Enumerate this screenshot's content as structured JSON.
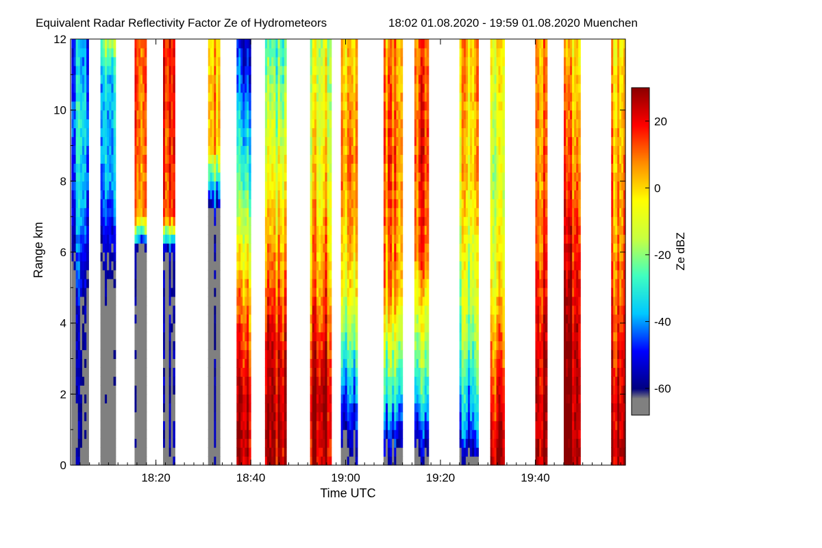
{
  "chart_data": {
    "type": "heatmap",
    "title": "Equivalent Radar Reflectivity Factor Ze of Hydrometeors",
    "subtitle": "18:02 01.08.2020 - 19:59 01.08.2020 Muenchen",
    "xlabel": "Time UTC",
    "ylabel": "Range km",
    "colorbar_label": "Ze dBZ",
    "x_range_minutes": [
      0,
      117
    ],
    "x_ticks": [
      {
        "label": "18:20",
        "minute": 18
      },
      {
        "label": "18:40",
        "minute": 38
      },
      {
        "label": "19:00",
        "minute": 58
      },
      {
        "label": "19:20",
        "minute": 78
      },
      {
        "label": "19:40",
        "minute": 98
      }
    ],
    "ylim": [
      0,
      12
    ],
    "y_ticks": [
      0,
      2,
      4,
      6,
      8,
      10,
      12
    ],
    "colorbar_range": [
      -68,
      30
    ],
    "colorbar_ticks": [
      20,
      0,
      -20,
      -40,
      -60
    ],
    "colormap": [
      "#000080",
      "#0000ff",
      "#00c8ff",
      "#40ffc0",
      "#c8ff40",
      "#ffff00",
      "#ff8c00",
      "#ff0000",
      "#8b0000"
    ],
    "nodata_color": "#808080",
    "segments": [
      {
        "t0": 0.2,
        "t1": 3.8,
        "profile": [
          [
            0,
            -62
          ],
          [
            4,
            -58
          ],
          [
            8,
            -35
          ],
          [
            10,
            -32
          ],
          [
            12,
            -40
          ]
        ]
      },
      {
        "t0": 6.3,
        "t1": 9.5,
        "profile": [
          [
            0,
            -62
          ],
          [
            5,
            -55
          ],
          [
            8,
            -30
          ],
          [
            11,
            -28
          ],
          [
            12,
            -10
          ]
        ]
      },
      {
        "t0": 13.5,
        "t1": 16.0,
        "profile": [
          [
            0,
            -62
          ],
          [
            6,
            -60
          ],
          [
            7,
            12
          ],
          [
            12,
            18
          ]
        ]
      },
      {
        "t0": 19.5,
        "t1": 22.0,
        "profile": [
          [
            0,
            -62
          ],
          [
            6,
            -60
          ],
          [
            7,
            10
          ],
          [
            12,
            15
          ]
        ]
      },
      {
        "t0": 29.0,
        "t1": 31.5,
        "profile": [
          [
            0,
            -62
          ],
          [
            7,
            -60
          ],
          [
            9,
            8
          ],
          [
            12,
            5
          ]
        ]
      },
      {
        "t0": 35.0,
        "t1": 38.0,
        "profile": [
          [
            0,
            25
          ],
          [
            2,
            22
          ],
          [
            5,
            5
          ],
          [
            8,
            -25
          ],
          [
            12,
            -50
          ]
        ]
      },
      {
        "t0": 41.0,
        "t1": 45.5,
        "profile": [
          [
            0,
            25
          ],
          [
            3,
            22
          ],
          [
            6,
            5
          ],
          [
            9,
            -10
          ],
          [
            12,
            -25
          ]
        ]
      },
      {
        "t0": 50.5,
        "t1": 55.0,
        "profile": [
          [
            0,
            25
          ],
          [
            2,
            28
          ],
          [
            5,
            10
          ],
          [
            8,
            0
          ],
          [
            12,
            -10
          ]
        ]
      },
      {
        "t0": 57.0,
        "t1": 60.5,
        "profile": [
          [
            0,
            -62
          ],
          [
            2,
            -40
          ],
          [
            5,
            -5
          ],
          [
            8,
            8
          ],
          [
            12,
            0
          ]
        ]
      },
      {
        "t0": 66.0,
        "t1": 70.0,
        "profile": [
          [
            0,
            -62
          ],
          [
            2,
            -30
          ],
          [
            5,
            5
          ],
          [
            9,
            10
          ],
          [
            12,
            5
          ]
        ]
      },
      {
        "t0": 72.5,
        "t1": 75.5,
        "profile": [
          [
            0,
            -62
          ],
          [
            2,
            -30
          ],
          [
            6,
            10
          ],
          [
            9,
            15
          ],
          [
            12,
            10
          ]
        ]
      },
      {
        "t0": 82.0,
        "t1": 86.0,
        "profile": [
          [
            0,
            -62
          ],
          [
            1,
            -40
          ],
          [
            4,
            -15
          ],
          [
            8,
            0
          ],
          [
            12,
            5
          ]
        ]
      },
      {
        "t0": 88.5,
        "t1": 91.5,
        "profile": [
          [
            0,
            28
          ],
          [
            2,
            20
          ],
          [
            5,
            0
          ],
          [
            8,
            -10
          ],
          [
            12,
            0
          ]
        ]
      },
      {
        "t0": 98.0,
        "t1": 100.5,
        "profile": [
          [
            0,
            28
          ],
          [
            3,
            25
          ],
          [
            6,
            15
          ],
          [
            9,
            10
          ],
          [
            12,
            8
          ]
        ]
      },
      {
        "t0": 104.0,
        "t1": 107.5,
        "profile": [
          [
            0,
            28
          ],
          [
            4,
            25
          ],
          [
            7,
            15
          ],
          [
            10,
            5
          ],
          [
            12,
            0
          ]
        ]
      },
      {
        "t0": 114.0,
        "t1": 117.0,
        "profile": [
          [
            0,
            28
          ],
          [
            3,
            20
          ],
          [
            6,
            10
          ],
          [
            10,
            5
          ],
          [
            12,
            0
          ]
        ]
      }
    ]
  }
}
